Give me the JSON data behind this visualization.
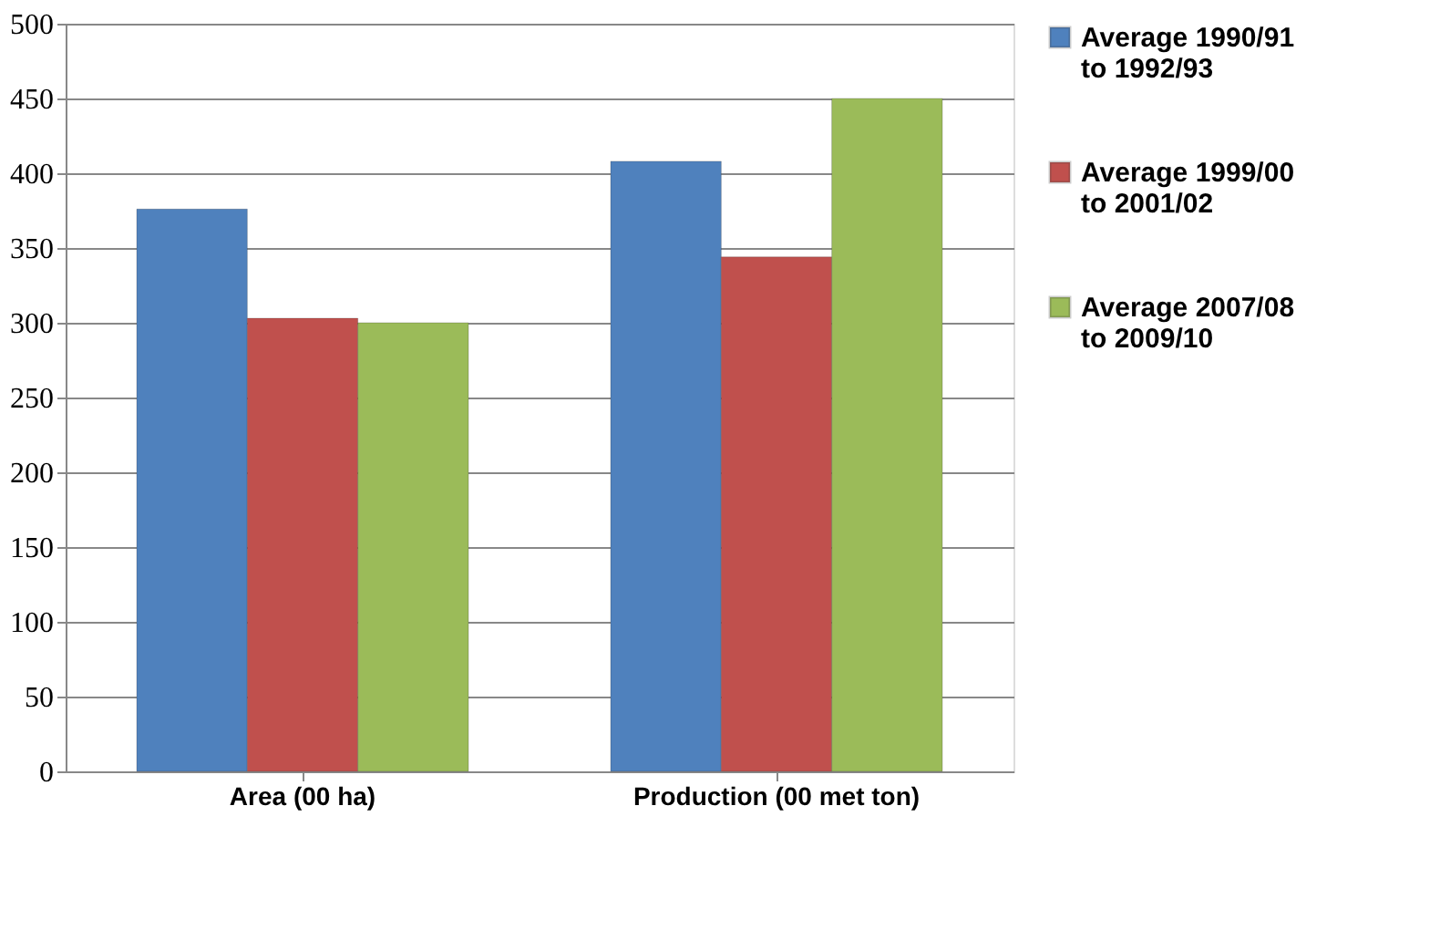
{
  "chart_data": {
    "type": "bar",
    "categories": [
      "Area (00 ha)",
      "Production (00 met ton)"
    ],
    "series": [
      {
        "name": "Average 1990/91 to 1992/93",
        "color": "#4f81bd",
        "values": [
          376,
          408
        ]
      },
      {
        "name": "Average 1999/00 to 2001/02",
        "color": "#c0504d",
        "values": [
          303,
          344
        ]
      },
      {
        "name": "Average 2007/08 to 2009/10",
        "color": "#9bbb59",
        "values": [
          300,
          450
        ]
      }
    ],
    "ylim": [
      0,
      500
    ],
    "yticks": [
      0,
      50,
      100,
      150,
      200,
      250,
      300,
      350,
      400,
      450,
      500
    ],
    "grid": "y",
    "legend": "right"
  }
}
